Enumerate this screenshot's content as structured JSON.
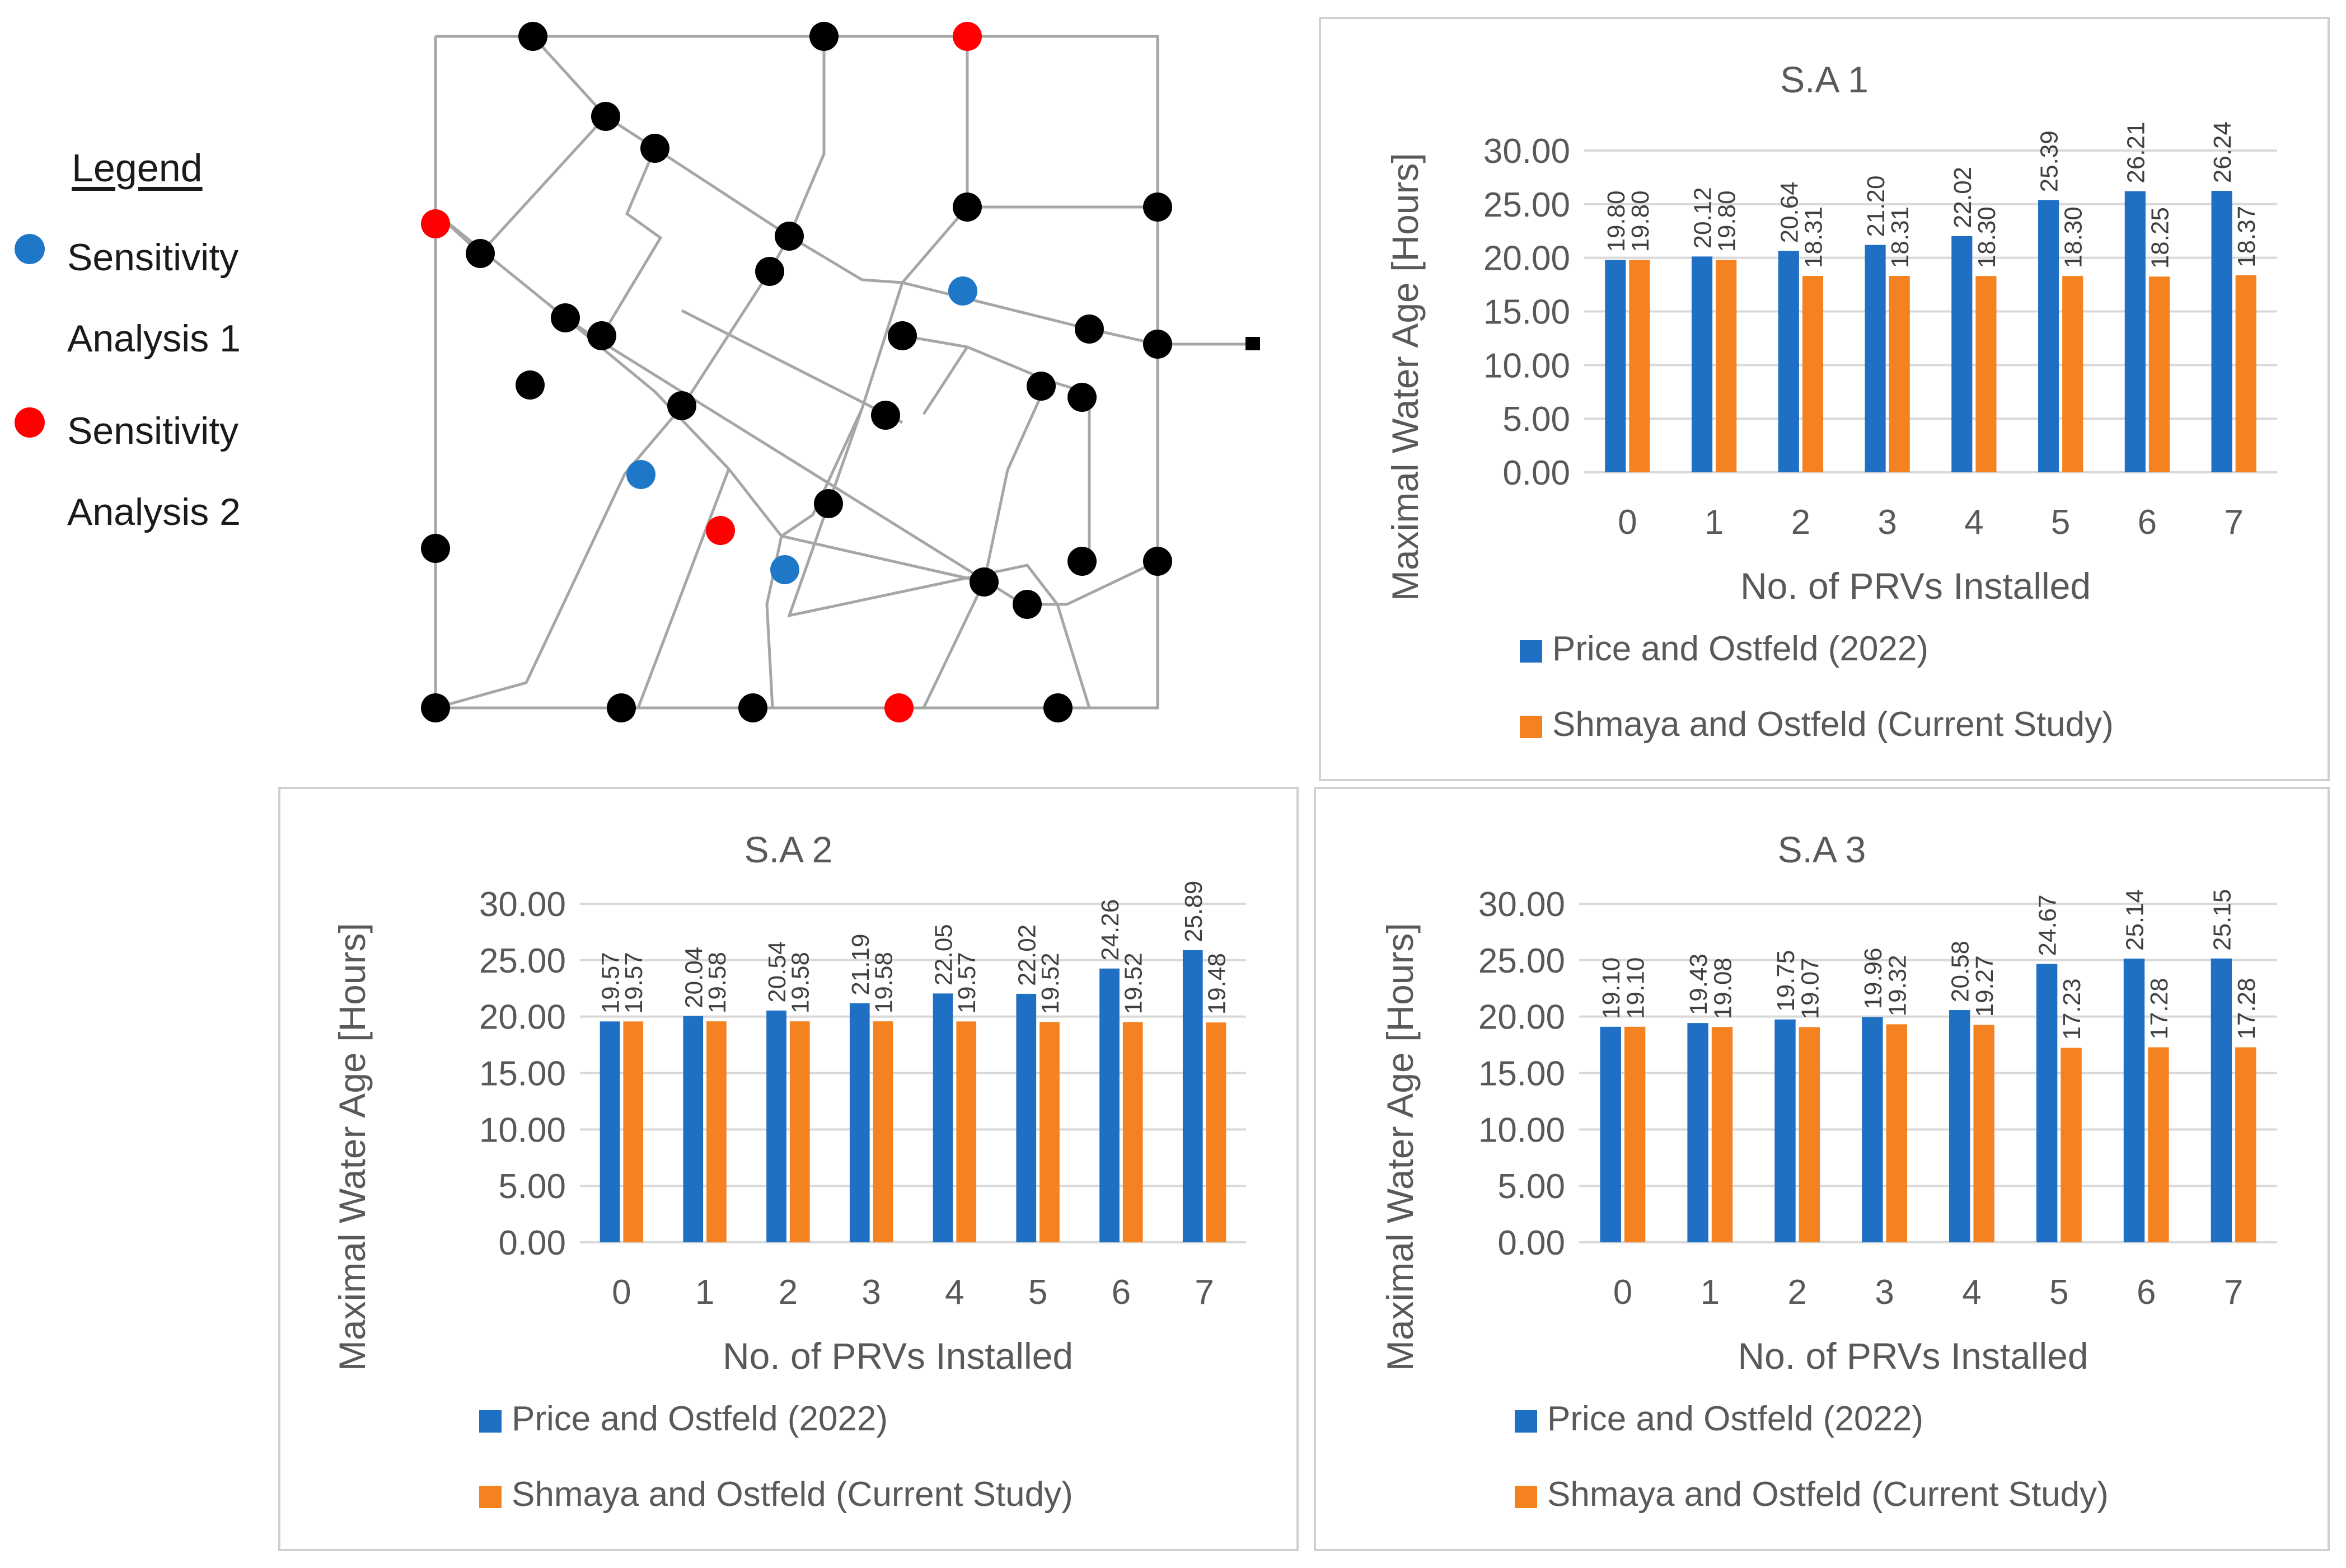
{
  "legend": {
    "title": "Legend",
    "items": [
      {
        "label_line1": "Sensitivity",
        "label_line2": "Analysis 1",
        "color": "#1f77c8"
      },
      {
        "label_line1": "Sensitivity",
        "label_line2": "Analysis 2",
        "color": "#ff0000"
      }
    ]
  },
  "colors": {
    "series1": "#1f6fc5",
    "series2": "#f58220",
    "node": "#000000",
    "pipe": "#a6a6a6"
  },
  "chart_data": [
    {
      "type": "bar",
      "title": "S.A 1",
      "xlabel": "No. of PRVs Installed",
      "ylabel": "Maximal Water Age [Hours]",
      "ylim": [
        0,
        30
      ],
      "yticks": [
        "0.00",
        "5.00",
        "10.00",
        "15.00",
        "20.00",
        "25.00",
        "30.00"
      ],
      "categories": [
        "0",
        "1",
        "2",
        "3",
        "4",
        "5",
        "6",
        "7"
      ],
      "legend_position": "bottom",
      "series": [
        {
          "name": "Price and Ostfeld (2022)",
          "values": [
            19.8,
            20.12,
            20.64,
            21.2,
            22.02,
            25.39,
            26.21,
            26.24
          ],
          "labels": [
            "19.80",
            "20.12",
            "20.64",
            "21.20",
            "22.02",
            "25.39",
            "26.21",
            "26.24"
          ]
        },
        {
          "name": "Shmaya and Ostfeld (Current Study)",
          "values": [
            19.8,
            19.8,
            18.31,
            18.31,
            18.3,
            18.3,
            18.25,
            18.37
          ],
          "labels": [
            "19.80",
            "19.80",
            "18.31",
            "18.31",
            "18.30",
            "18.30",
            "18.25",
            "18.37"
          ]
        }
      ]
    },
    {
      "type": "bar",
      "title": "S.A 2",
      "xlabel": "No. of PRVs Installed",
      "ylabel": "Maximal Water Age [Hours]",
      "ylim": [
        0,
        30
      ],
      "yticks": [
        "0.00",
        "5.00",
        "10.00",
        "15.00",
        "20.00",
        "25.00",
        "30.00"
      ],
      "categories": [
        "0",
        "1",
        "2",
        "3",
        "4",
        "5",
        "6",
        "7"
      ],
      "legend_position": "bottom",
      "series": [
        {
          "name": "Price and Ostfeld (2022)",
          "values": [
            19.57,
            20.04,
            20.54,
            21.19,
            22.05,
            22.02,
            24.26,
            25.89
          ],
          "labels": [
            "19.57",
            "20.04",
            "20.54",
            "21.19",
            "22.05",
            "22.02",
            "24.26",
            "25.89"
          ]
        },
        {
          "name": "Shmaya and Ostfeld (Current Study)",
          "values": [
            19.57,
            19.58,
            19.58,
            19.58,
            19.57,
            19.52,
            19.52,
            19.48
          ],
          "labels": [
            "19.57",
            "19.58",
            "19.58",
            "19.58",
            "19.57",
            "19.52",
            "19.52",
            "19.48"
          ]
        }
      ]
    },
    {
      "type": "bar",
      "title": "S.A 3",
      "xlabel": "No. of PRVs Installed",
      "ylabel": "Maximal Water Age [Hours]",
      "ylim": [
        0,
        30
      ],
      "yticks": [
        "0.00",
        "5.00",
        "10.00",
        "15.00",
        "20.00",
        "25.00",
        "30.00"
      ],
      "categories": [
        "0",
        "1",
        "2",
        "3",
        "4",
        "5",
        "6",
        "7"
      ],
      "legend_position": "bottom",
      "series": [
        {
          "name": "Price and Ostfeld (2022)",
          "values": [
            19.1,
            19.43,
            19.75,
            19.96,
            20.58,
            24.67,
            25.14,
            25.15
          ],
          "labels": [
            "19.10",
            "19.43",
            "19.75",
            "19.96",
            "20.58",
            "24.67",
            "25.14",
            "25.15"
          ]
        },
        {
          "name": "Shmaya and Ostfeld (Current Study)",
          "values": [
            19.1,
            19.08,
            19.07,
            19.32,
            19.27,
            17.23,
            17.28,
            17.28
          ],
          "labels": [
            "19.10",
            "19.08",
            "19.07",
            "19.32",
            "19.27",
            "17.23",
            "17.28",
            "17.28"
          ]
        }
      ]
    }
  ]
}
